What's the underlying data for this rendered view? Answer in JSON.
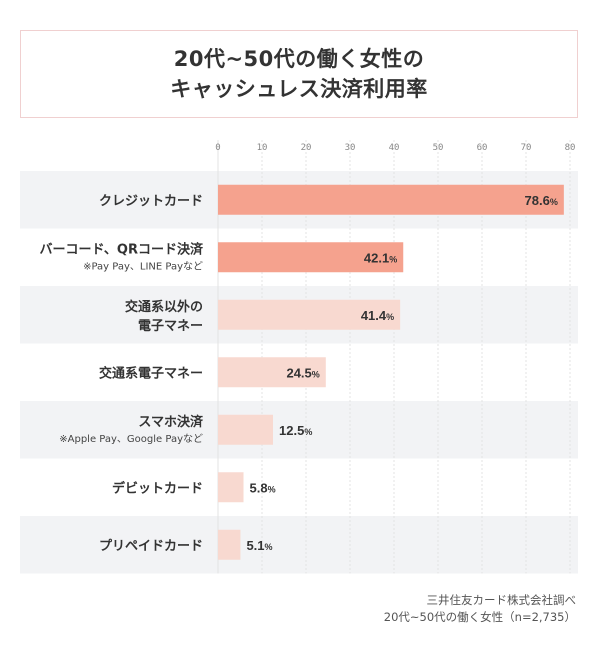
{
  "title_lines": [
    "20代~50代の働く女性の",
    "キャッシュレス決済利用率"
  ],
  "source": {
    "line1": "三井住友カード株式会社調べ",
    "line2": "20代~50代の働く女性（n=2,735）"
  },
  "colors": {
    "bar_strong": "#f5a28e",
    "bar_light": "#f8d9d0",
    "row_band": "#f2f3f5",
    "grid": "#e3e3e3"
  },
  "chart_data": {
    "type": "bar",
    "orientation": "horizontal",
    "unit": "%",
    "xlim": [
      0,
      80
    ],
    "x_ticks": [
      0,
      10,
      20,
      30,
      40,
      50,
      60,
      70,
      80
    ],
    "categories": [
      {
        "label": "クレジットカード",
        "sub": ""
      },
      {
        "label": "バーコード、QRコード決済",
        "sub": "※Pay Pay、LINE Payなど"
      },
      {
        "label": "交通系以外の\n電子マネー",
        "sub": ""
      },
      {
        "label": "交通系電子マネー",
        "sub": ""
      },
      {
        "label": "スマホ決済",
        "sub": "※Apple Pay、Google Payなど"
      },
      {
        "label": "デビットカード",
        "sub": ""
      },
      {
        "label": "プリペイドカード",
        "sub": ""
      }
    ],
    "values": [
      78.6,
      42.1,
      41.4,
      24.5,
      12.5,
      5.8,
      5.1
    ],
    "value_labels": [
      "78.6",
      "42.1",
      "41.4",
      "24.5",
      "12.5",
      "5.8",
      "5.1"
    ]
  }
}
